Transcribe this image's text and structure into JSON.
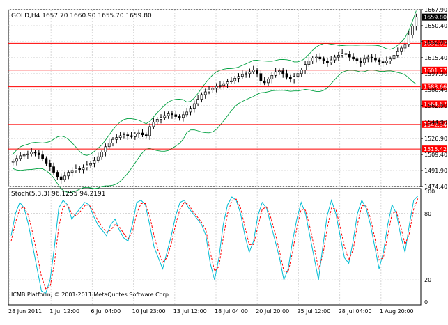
{
  "main_chart": {
    "info_label": "GOLD,H4  1657.70 1660.90 1655.70 1659.80",
    "current_price": "1659.80",
    "price_axis": [
      "1667.90",
      "1650.40",
      "1632.90",
      "1615.40",
      "1597.90",
      "1580.40",
      "1562.90",
      "1544.90",
      "1526.90",
      "1509.40",
      "1491.90",
      "1474.40"
    ],
    "levels": [
      {
        "label": "1631.02",
        "value": 1631.02
      },
      {
        "label": "1601.77",
        "value": 1601.77
      },
      {
        "label": "1583.66",
        "value": 1583.66
      },
      {
        "label": "1564.67",
        "value": 1564.67
      },
      {
        "label": "1542.34",
        "value": 1542.34
      },
      {
        "label": "1515.42",
        "value": 1515.42
      }
    ]
  },
  "oscillator": {
    "label": "Stoch(5,3,3) 96.1255 94.2191",
    "axis": [
      "100",
      "80",
      "20",
      "0"
    ],
    "copyright": "ICMB Platform, © 2001-2011 MetaQuotes Software Corp."
  },
  "time_axis": [
    "28 Jun 2011",
    "1 Jul 12:00",
    "6 Jul 04:00",
    "10 Jul 23:00",
    "13 Jul 12:00",
    "18 Jul 04:00",
    "20 Jul 20:00",
    "25 Jul 12:00",
    "28 Jul 04:00",
    "1 Aug 20:00"
  ],
  "colors": {
    "level_line": "#ff0000",
    "level_label_bg": "#ff0000",
    "band_line": "#00a040",
    "main_stoch": "#00bcd4",
    "signal_stoch": "#ff0000",
    "candles": "#000000"
  },
  "chart_data": [
    {
      "type": "candlestick",
      "title": "GOLD,H4",
      "ylim": [
        1474.4,
        1667.9
      ],
      "x_labels": [
        "28 Jun 2011",
        "1 Jul 12:00",
        "6 Jul 04:00",
        "10 Jul 23:00",
        "13 Jul 12:00",
        "18 Jul 04:00",
        "20 Jul 20:00",
        "25 Jul 12:00",
        "28 Jul 04:00",
        "1 Aug 20:00"
      ],
      "close": [
        1502,
        1505,
        1508,
        1509,
        1510,
        1512,
        1511,
        1509,
        1505,
        1500,
        1496,
        1490,
        1485,
        1482,
        1486,
        1490,
        1492,
        1494,
        1493,
        1495,
        1498,
        1500,
        1503,
        1507,
        1512,
        1518,
        1522,
        1526,
        1528,
        1530,
        1531,
        1530,
        1529,
        1532,
        1533,
        1531,
        1530,
        1540,
        1545,
        1548,
        1550,
        1552,
        1554,
        1553,
        1551,
        1550,
        1553,
        1556,
        1560,
        1565,
        1570,
        1575,
        1578,
        1580,
        1582,
        1584,
        1585,
        1587,
        1589,
        1590,
        1593,
        1595,
        1597,
        1598,
        1600,
        1602,
        1598,
        1590,
        1588,
        1592,
        1596,
        1600,
        1601,
        1598,
        1594,
        1592,
        1595,
        1598,
        1602,
        1608,
        1612,
        1615,
        1616,
        1614,
        1612,
        1610,
        1613,
        1616,
        1618,
        1620,
        1619,
        1616,
        1614,
        1612,
        1610,
        1614,
        1616,
        1615,
        1613,
        1611,
        1610,
        1612,
        1614,
        1618,
        1622,
        1626,
        1630,
        1640,
        1650,
        1660
      ],
      "bands": {
        "upper": "moving envelope",
        "lower": "moving envelope"
      }
    },
    {
      "type": "line",
      "title": "Stoch(5,3,3) 96.1255 94.2191",
      "ylim": [
        0,
        100
      ],
      "series": [
        {
          "name": "main",
          "values": [
            60,
            80,
            90,
            85,
            70,
            50,
            30,
            10,
            8,
            20,
            50,
            85,
            92,
            88,
            75,
            80,
            85,
            90,
            88,
            78,
            70,
            65,
            60,
            70,
            75,
            65,
            58,
            55,
            70,
            90,
            92,
            88,
            70,
            50,
            40,
            30,
            45,
            60,
            78,
            90,
            92,
            85,
            80,
            75,
            70,
            60,
            35,
            20,
            40,
            70,
            88,
            95,
            92,
            80,
            60,
            45,
            55,
            78,
            90,
            85,
            70,
            55,
            40,
            20,
            30,
            55,
            75,
            90,
            80,
            60,
            40,
            20,
            50,
            78,
            92,
            80,
            60,
            40,
            35,
            55,
            80,
            92,
            85,
            70,
            50,
            30,
            45,
            70,
            88,
            80,
            60,
            45,
            70,
            92,
            96
          ]
        },
        {
          "name": "signal",
          "values": [
            55,
            72,
            84,
            86,
            78,
            62,
            43,
            23,
            12,
            14,
            35,
            68,
            86,
            88,
            80,
            78,
            82,
            87,
            88,
            82,
            74,
            68,
            63,
            65,
            70,
            68,
            62,
            57,
            63,
            80,
            89,
            89,
            78,
            60,
            46,
            36,
            40,
            53,
            70,
            84,
            90,
            88,
            82,
            77,
            72,
            65,
            45,
            28,
            32,
            58,
            80,
            92,
            93,
            85,
            68,
            52,
            52,
            68,
            84,
            86,
            76,
            62,
            46,
            28,
            27,
            45,
            67,
            84,
            83,
            68,
            50,
            30,
            42,
            66,
            85,
            84,
            68,
            50,
            38,
            47,
            70,
            87,
            87,
            76,
            58,
            38,
            40,
            60,
            80,
            82,
            68,
            52,
            62,
            84,
            94
          ]
        }
      ]
    }
  ]
}
